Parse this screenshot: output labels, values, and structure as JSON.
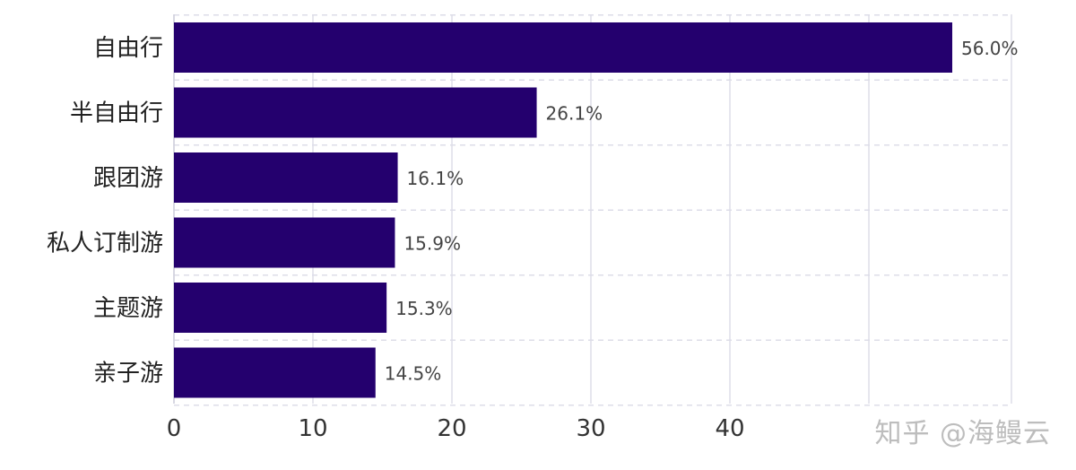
{
  "chart_data": {
    "type": "bar",
    "orientation": "horizontal",
    "categories": [
      "自由行",
      "半自由行",
      "跟团游",
      "私人订制游",
      "主题游",
      "亲子游"
    ],
    "values": [
      56.0,
      26.1,
      16.1,
      15.9,
      15.3,
      14.5
    ],
    "value_labels": [
      "56.0%",
      "26.1%",
      "16.1%",
      "15.9%",
      "15.3%",
      "14.5%"
    ],
    "xticks": [
      0,
      10,
      20,
      30,
      40,
      50
    ],
    "xtick_labels": [
      "0",
      "10",
      "20",
      "30",
      "40",
      ""
    ],
    "xlim": [
      0,
      60
    ],
    "title": "",
    "xlabel": "",
    "ylabel": "",
    "grid": true,
    "bar_color": "#24006e",
    "grid_color": "#dddde8"
  },
  "watermark": "知乎 @海鳗云"
}
